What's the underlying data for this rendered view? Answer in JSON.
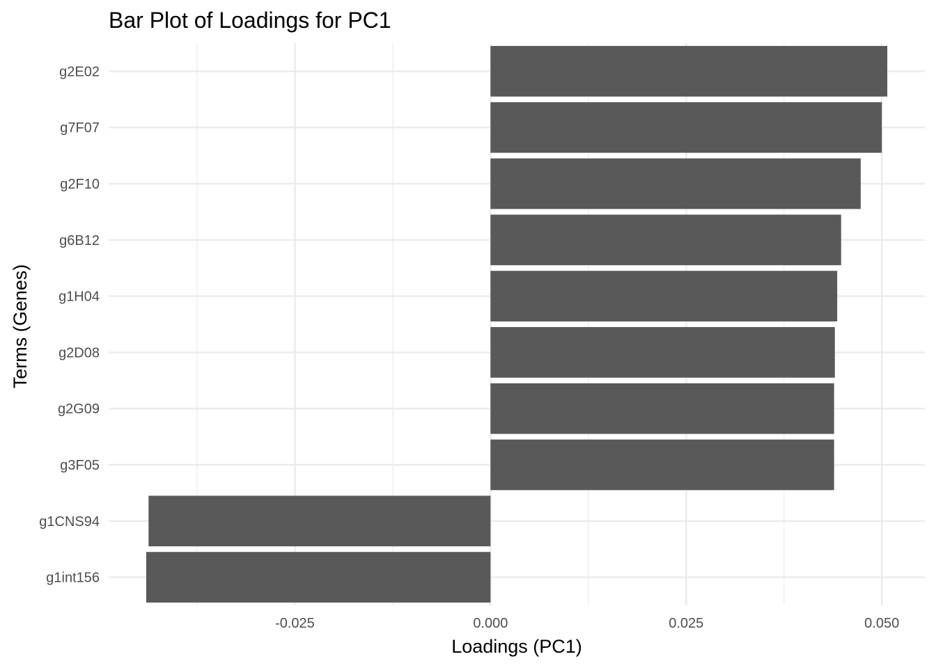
{
  "chart_data": {
    "type": "bar",
    "orientation": "horizontal",
    "title": "Bar Plot of Loadings for PC1",
    "xlabel": "Loadings (PC1)",
    "ylabel": "Terms (Genes)",
    "categories": [
      "g2E02",
      "g7F07",
      "g2F10",
      "g6B12",
      "g1H04",
      "g2D08",
      "g2G09",
      "g3F05",
      "g1CNS94",
      "g1int156"
    ],
    "values": [
      0.0507,
      0.05,
      0.0473,
      0.0448,
      0.0443,
      0.044,
      0.0439,
      0.0439,
      -0.0437,
      -0.044
    ],
    "xlim": [
      -0.0488,
      0.0555
    ],
    "x_major_ticks": [
      -0.025,
      0.0,
      0.025,
      0.05
    ],
    "x_tick_labels": [
      "-0.025",
      "0.000",
      "0.025",
      "0.050"
    ],
    "x_minor_ticks": [
      -0.0375,
      -0.0125,
      0.0125,
      0.0375
    ],
    "grid": true,
    "legend": "none",
    "bar_color": "#595959",
    "grid_color": "#ebebeb"
  }
}
